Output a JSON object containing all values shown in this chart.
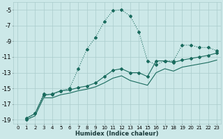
{
  "xlabel": "Humidex (Indice chaleur)",
  "bg_color": "#cce8e8",
  "grid_color": "#aacccc",
  "line_color": "#1a6b5e",
  "xlim": [
    -0.5,
    23.5
  ],
  "ylim": [
    -19.5,
    -4.0
  ],
  "xticks": [
    0,
    1,
    2,
    3,
    4,
    5,
    6,
    7,
    8,
    9,
    10,
    11,
    12,
    13,
    14,
    15,
    16,
    17,
    18,
    19,
    20,
    21,
    22,
    23
  ],
  "yticks": [
    -19,
    -17,
    -15,
    -13,
    -11,
    -9,
    -7,
    -5
  ],
  "series_peaked_x": [
    1,
    2,
    3,
    4,
    5,
    6,
    7,
    8,
    9,
    10,
    11,
    12,
    13,
    14,
    15,
    16,
    17,
    18,
    19,
    20,
    21,
    22,
    23
  ],
  "series_peaked_y": [
    -19.0,
    -18.2,
    -15.7,
    -15.8,
    -15.3,
    -15.0,
    -12.5,
    -10.0,
    -8.5,
    -6.5,
    -5.1,
    -5.0,
    -5.8,
    -7.8,
    -11.5,
    -12.0,
    -11.5,
    -11.5,
    -9.5,
    -9.5,
    -9.8,
    -9.8,
    -10.2
  ],
  "series_mid_x": [
    1,
    2,
    3,
    4,
    5,
    6,
    7,
    8,
    9,
    10,
    11,
    12,
    13,
    14,
    15,
    16,
    17,
    18,
    19,
    20,
    21,
    22,
    23
  ],
  "series_mid_y": [
    -18.8,
    -18.2,
    -15.9,
    -15.7,
    -15.3,
    -15.2,
    -14.9,
    -14.7,
    -14.3,
    -13.5,
    -12.7,
    -12.5,
    -13.0,
    -13.0,
    -13.5,
    -11.5,
    -11.5,
    -11.7,
    -11.4,
    -11.2,
    -11.0,
    -10.8,
    -10.5
  ],
  "series_low_x": [
    1,
    2,
    3,
    4,
    5,
    6,
    7,
    8,
    9,
    10,
    11,
    12,
    13,
    14,
    15,
    16,
    17,
    18,
    19,
    20,
    21,
    22,
    23
  ],
  "series_low_y": [
    -19.0,
    -18.5,
    -16.2,
    -16.2,
    -15.8,
    -15.6,
    -15.3,
    -15.1,
    -14.8,
    -14.3,
    -13.7,
    -13.4,
    -14.0,
    -14.3,
    -14.6,
    -13.0,
    -12.5,
    -12.8,
    -12.3,
    -12.1,
    -11.9,
    -11.7,
    -11.4
  ]
}
